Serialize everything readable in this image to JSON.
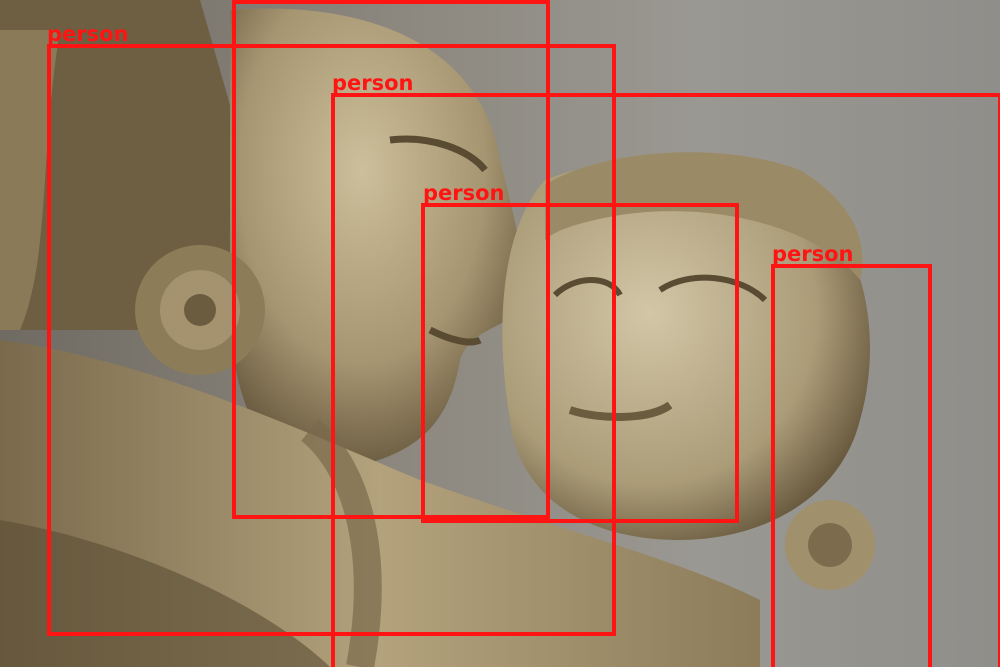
{
  "photo": {
    "subject": "sandstone sculpture of two embracing figures",
    "colors": {
      "stone_light": "#cbbd98",
      "stone_mid": "#a8976e",
      "stone_dark": "#5a4c33",
      "background": "#8e8b86",
      "box": "#ff1414"
    }
  },
  "detections": [
    {
      "label": "person"
    },
    {
      "label": "person"
    },
    {
      "label": "person"
    },
    {
      "label": "person"
    },
    {
      "label": "person"
    }
  ]
}
